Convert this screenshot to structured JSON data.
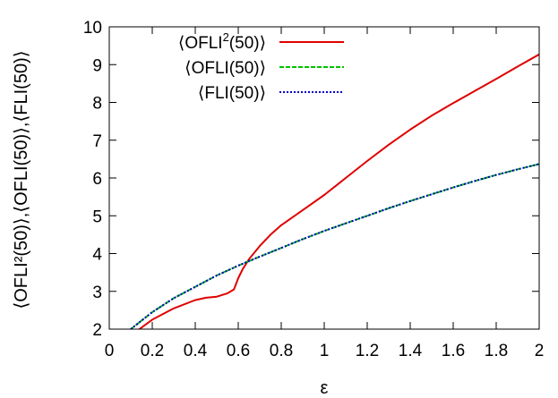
{
  "chart_data": {
    "type": "line",
    "xlabel": "ε",
    "ylabel": "⟨OFLI²(50)⟩,⟨OFLI(50)⟩,⟨FLI(50)⟩",
    "xlim": [
      0,
      2
    ],
    "ylim": [
      2,
      10
    ],
    "x_ticks": [
      0,
      0.2,
      0.4,
      0.6,
      0.8,
      1,
      1.2,
      1.4,
      1.6,
      1.8,
      2
    ],
    "x_tick_labels": [
      "0",
      "0.2",
      "0.4",
      "0.6",
      "0.8",
      "1",
      "1.2",
      "1.4",
      "1.6",
      "1.8",
      "2"
    ],
    "y_ticks": [
      2,
      3,
      4,
      5,
      6,
      7,
      8,
      9,
      10
    ],
    "y_tick_labels": [
      "2",
      "3",
      "4",
      "5",
      "6",
      "7",
      "8",
      "9",
      "10"
    ],
    "grid": false,
    "legend_position": "top-left",
    "series": [
      {
        "name": "⟨OFLI²(50)⟩",
        "name_base": "⟨OFLI",
        "name_sup": "2",
        "name_tail": "(50)⟩",
        "color": "#e00000",
        "dash": "solid",
        "x": [
          0.14,
          0.2,
          0.3,
          0.4,
          0.45,
          0.5,
          0.55,
          0.58,
          0.6,
          0.62,
          0.65,
          0.7,
          0.75,
          0.8,
          0.9,
          1.0,
          1.1,
          1.2,
          1.3,
          1.4,
          1.5,
          1.6,
          1.7,
          1.8,
          1.9,
          2.0
        ],
        "y": [
          2.0,
          2.25,
          2.55,
          2.77,
          2.83,
          2.86,
          2.95,
          3.05,
          3.35,
          3.58,
          3.85,
          4.2,
          4.5,
          4.75,
          5.15,
          5.55,
          6.0,
          6.45,
          6.88,
          7.28,
          7.65,
          7.98,
          8.3,
          8.62,
          8.95,
          9.27
        ]
      },
      {
        "name": "⟨OFLI(50)⟩",
        "color": "#00c000",
        "dash": "dashed",
        "x": [
          0.1,
          0.2,
          0.3,
          0.4,
          0.5,
          0.6,
          0.7,
          0.8,
          0.9,
          1.0,
          1.1,
          1.2,
          1.3,
          1.4,
          1.5,
          1.6,
          1.7,
          1.8,
          1.9,
          2.0
        ],
        "y": [
          2.0,
          2.45,
          2.82,
          3.12,
          3.42,
          3.68,
          3.92,
          4.15,
          4.38,
          4.6,
          4.8,
          5.0,
          5.2,
          5.39,
          5.57,
          5.75,
          5.92,
          6.08,
          6.23,
          6.37
        ]
      },
      {
        "name": "⟨FLI(50)⟩",
        "color": "#0000c8",
        "dash": "dotted",
        "x": [
          0.1,
          0.2,
          0.3,
          0.4,
          0.5,
          0.6,
          0.7,
          0.8,
          0.9,
          1.0,
          1.1,
          1.2,
          1.3,
          1.4,
          1.5,
          1.6,
          1.7,
          1.8,
          1.9,
          2.0
        ],
        "y": [
          2.0,
          2.45,
          2.82,
          3.12,
          3.42,
          3.68,
          3.92,
          4.15,
          4.38,
          4.6,
          4.8,
          5.0,
          5.2,
          5.39,
          5.57,
          5.75,
          5.92,
          6.08,
          6.23,
          6.37
        ]
      }
    ]
  }
}
